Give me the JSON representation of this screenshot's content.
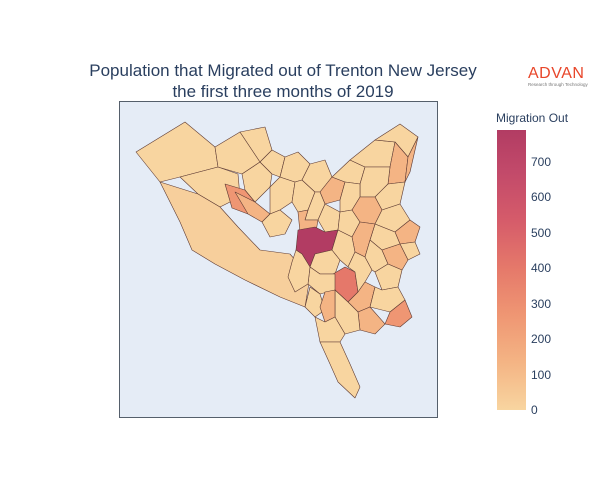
{
  "title": {
    "line1": "Population that Migrated out of Trenton New Jersey",
    "line2": "the first three months of 2019"
  },
  "logo": {
    "word": "ADVAN",
    "tagline": "Research through Technology"
  },
  "colorbar": {
    "title": "Migration Out",
    "range": [
      0,
      790
    ],
    "ticks": [
      {
        "label": "700",
        "value": 700
      },
      {
        "label": "600",
        "value": 600
      },
      {
        "label": "500",
        "value": 500
      },
      {
        "label": "400",
        "value": 400
      },
      {
        "label": "300",
        "value": 300
      },
      {
        "label": "200",
        "value": 200
      },
      {
        "label": "100",
        "value": 100
      },
      {
        "label": "0",
        "value": 0
      }
    ]
  },
  "colors": {
    "scale_low": "#f8d5a0",
    "scale_high": "#b23c63",
    "map_background": "#e5ecf6",
    "outline": "#5e3b34"
  },
  "chart_data": {
    "type": "choropleth",
    "value_key": "Migration Out",
    "value_range": [
      0,
      790
    ],
    "note_highest": "central district near 790",
    "approx_region_values": [
      {
        "region": "central",
        "value": 790
      },
      {
        "region": "south-central",
        "value": 520
      },
      {
        "region": "west",
        "value": 420
      },
      {
        "region": "southeast",
        "value": 380
      },
      {
        "region": "east-edge",
        "value": 330
      },
      {
        "region": "north-east",
        "value": 260
      },
      {
        "region": "others",
        "value": 60
      }
    ]
  }
}
